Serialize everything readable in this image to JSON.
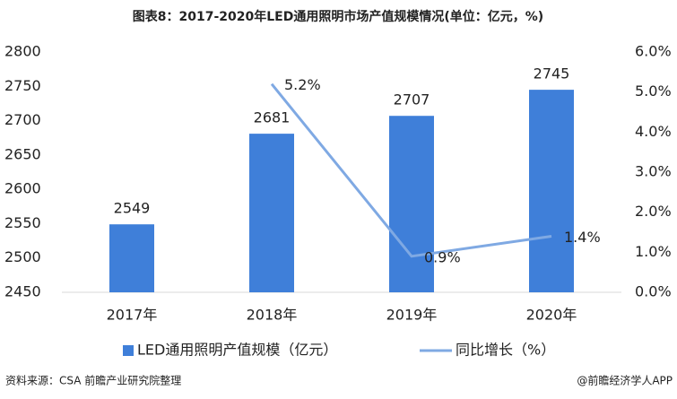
{
  "chart_data": {
    "type": "bar",
    "title": "图表8：2017-2020年LED通用照明市场产值规模情况(单位：亿元，%)",
    "categories": [
      "2017年",
      "2018年",
      "2019年",
      "2020年"
    ],
    "series": [
      {
        "name": "LED通用照明产值规模（亿元）",
        "type": "bar",
        "color": "#3f7fd9",
        "values": [
          2549,
          2681,
          2707,
          2745
        ]
      },
      {
        "name": "同比增长（%）",
        "type": "line",
        "axis": "y2",
        "color": "#7fa9e3",
        "values": [
          null,
          5.2,
          0.9,
          1.4
        ],
        "value_labels": [
          null,
          "5.2%",
          "0.9%",
          "1.4%"
        ]
      }
    ],
    "ylim": [
      2450,
      2800
    ],
    "yticks": [
      2450,
      2500,
      2550,
      2600,
      2650,
      2700,
      2750,
      2800
    ],
    "y2lim": [
      0,
      6
    ],
    "y2ticks": [
      {
        "value": 0,
        "label": "0.0%"
      },
      {
        "value": 1,
        "label": "1.0%"
      },
      {
        "value": 2,
        "label": "2.0%"
      },
      {
        "value": 3,
        "label": "3.0%"
      },
      {
        "value": 4,
        "label": "4.0%"
      },
      {
        "value": 5,
        "label": "5.0%"
      },
      {
        "value": 6,
        "label": "6.0%"
      }
    ],
    "source": "资料来源：CSA 前瞻产业研究院整理",
    "credit": "@前瞻经济学人APP"
  }
}
